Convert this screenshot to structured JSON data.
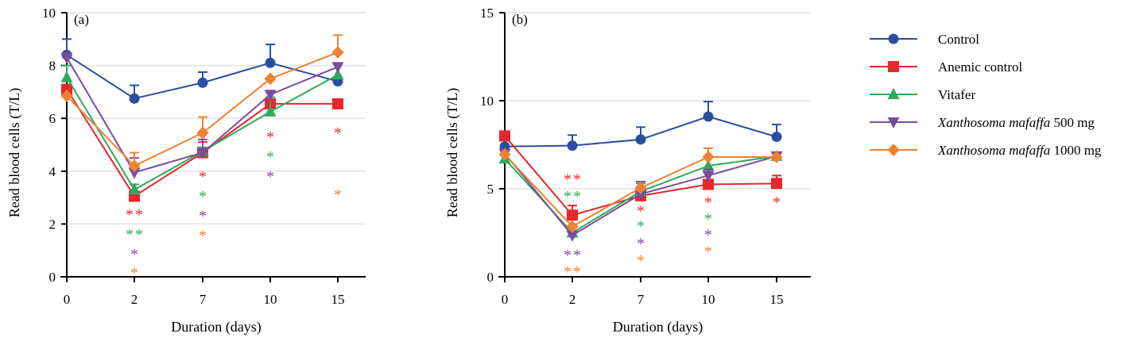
{
  "chart_data": [
    {
      "type": "line",
      "panel_label": "(a)",
      "xlabel": "Duration (days)",
      "ylabel": "Read blood cells (T/L)",
      "categories": [
        "0",
        "2",
        "7",
        "10",
        "15"
      ],
      "ylim": [
        0,
        10
      ],
      "yticks": [
        0,
        2,
        4,
        6,
        8,
        10
      ],
      "grid": true,
      "series": [
        {
          "name": "Control",
          "color": "#2a4f9e",
          "marker": "circle",
          "values": [
            8.4,
            6.75,
            7.35,
            8.1,
            7.4
          ],
          "err_top": [
            9.0,
            7.25,
            7.75,
            8.8,
            null
          ]
        },
        {
          "name": "Anemic control",
          "color": "#e8262c",
          "marker": "square",
          "values": [
            7.1,
            3.05,
            4.7,
            6.55,
            6.55
          ],
          "err_top": [
            null,
            3.5,
            5.1,
            null,
            null
          ]
        },
        {
          "name": "Vitafer",
          "color": "#2eab5c",
          "marker": "triangle-up",
          "values": [
            7.55,
            3.3,
            4.75,
            6.25,
            7.65
          ],
          "err_top": [
            8.0,
            3.5,
            4.9,
            6.8,
            8.05
          ]
        },
        {
          "name": "Xanthosoma mafaffa 500 mg",
          "color": "#7b4b9e",
          "marker": "triangle-down",
          "values": [
            8.3,
            3.95,
            4.7,
            6.9,
            7.95
          ],
          "err_top": [
            null,
            4.5,
            5.2,
            null,
            null
          ]
        },
        {
          "name": "Xanthosoma mafaffa 1000 mg",
          "color": "#ee8230",
          "marker": "diamond",
          "values": [
            6.85,
            4.2,
            5.45,
            7.5,
            8.5
          ],
          "err_top": [
            null,
            4.7,
            6.05,
            null,
            9.15
          ]
        }
      ],
      "significance": [
        {
          "x": "2",
          "series": "Anemic control",
          "text": "**",
          "y": 2.4
        },
        {
          "x": "2",
          "series": "Vitafer",
          "text": "**",
          "y": 1.65
        },
        {
          "x": "2",
          "series": "Xanthosoma mafaffa 500 mg",
          "text": "*",
          "y": 0.9
        },
        {
          "x": "2",
          "series": "Xanthosoma mafaffa 1000 mg",
          "text": "*",
          "y": 0.2
        },
        {
          "x": "7",
          "series": "Anemic control",
          "text": "*",
          "y": 3.85
        },
        {
          "x": "7",
          "series": "Vitafer",
          "text": "*",
          "y": 3.1
        },
        {
          "x": "7",
          "series": "Xanthosoma mafaffa 500 mg",
          "text": "*",
          "y": 2.35
        },
        {
          "x": "7",
          "series": "Xanthosoma mafaffa 1000 mg",
          "text": "*",
          "y": 1.6
        },
        {
          "x": "10",
          "series": "Anemic control",
          "text": "*",
          "y": 5.35
        },
        {
          "x": "10",
          "series": "Vitafer",
          "text": "*",
          "y": 4.6
        },
        {
          "x": "10",
          "series": "Xanthosoma mafaffa 500 mg",
          "text": "*",
          "y": 3.85
        },
        {
          "x": "15",
          "series": "Anemic control",
          "text": "*",
          "y": 5.5
        },
        {
          "x": "15",
          "series": "Xanthosoma mafaffa 1000 mg",
          "text": "*",
          "y": 3.15
        }
      ]
    },
    {
      "type": "line",
      "panel_label": "(b)",
      "xlabel": "Duration (days)",
      "ylabel": "Read blood cells (T/L)",
      "categories": [
        "0",
        "2",
        "7",
        "10",
        "15"
      ],
      "ylim": [
        0,
        15
      ],
      "yticks": [
        0,
        5,
        10,
        15
      ],
      "grid": true,
      "series": [
        {
          "name": "Control",
          "color": "#2a4f9e",
          "marker": "circle",
          "values": [
            7.4,
            7.45,
            7.8,
            9.1,
            7.95
          ],
          "err_top": [
            7.9,
            8.05,
            8.5,
            9.95,
            8.65
          ]
        },
        {
          "name": "Anemic control",
          "color": "#e8262c",
          "marker": "square",
          "values": [
            8.0,
            3.5,
            4.6,
            5.25,
            5.3
          ],
          "err_top": [
            null,
            4.05,
            null,
            null,
            5.75
          ]
        },
        {
          "name": "Vitafer",
          "color": "#2eab5c",
          "marker": "triangle-up",
          "values": [
            6.7,
            2.5,
            4.85,
            6.3,
            6.85
          ],
          "err_top": [
            null,
            null,
            5.3,
            null,
            null
          ]
        },
        {
          "name": "Xanthosoma mafaffa 500 mg",
          "color": "#7b4b9e",
          "marker": "triangle-down",
          "values": [
            7.0,
            2.35,
            4.7,
            5.75,
            6.85
          ],
          "err_top": [
            null,
            2.9,
            5.4,
            6.1,
            null
          ]
        },
        {
          "name": "Xanthosoma mafaffa 1000 mg",
          "color": "#ee8230",
          "marker": "diamond",
          "values": [
            6.95,
            2.85,
            5.05,
            6.8,
            6.8
          ],
          "err_top": [
            null,
            null,
            null,
            7.3,
            null
          ]
        }
      ],
      "significance": [
        {
          "x": "2",
          "series": "Anemic control",
          "text": "**",
          "y": 5.6
        },
        {
          "x": "2",
          "series": "Vitafer",
          "text": "**",
          "y": 4.65
        },
        {
          "x": "2",
          "series": "Xanthosoma mafaffa 500 mg",
          "text": "**",
          "y": 1.3
        },
        {
          "x": "2",
          "series": "Xanthosoma mafaffa 1000 mg",
          "text": "**",
          "y": 0.35
        },
        {
          "x": "7",
          "series": "Anemic control",
          "text": "*",
          "y": 3.8
        },
        {
          "x": "7",
          "series": "Vitafer",
          "text": "*",
          "y": 2.95
        },
        {
          "x": "7",
          "series": "Xanthosoma mafaffa 500 mg",
          "text": "*",
          "y": 1.95
        },
        {
          "x": "7",
          "series": "Xanthosoma mafaffa 1000 mg",
          "text": "*",
          "y": 1.0
        },
        {
          "x": "10",
          "series": "Anemic control",
          "text": "*",
          "y": 4.3
        },
        {
          "x": "10",
          "series": "Vitafer",
          "text": "*",
          "y": 3.35
        },
        {
          "x": "10",
          "series": "Xanthosoma mafaffa 500 mg",
          "text": "*",
          "y": 2.45
        },
        {
          "x": "10",
          "series": "Xanthosoma mafaffa 1000 mg",
          "text": "*",
          "y": 1.5
        },
        {
          "x": "15",
          "series": "Anemic control",
          "text": "*",
          "y": 4.3
        }
      ]
    }
  ],
  "legend": {
    "placement": "right",
    "items": [
      {
        "label": "Control",
        "italic": "",
        "suffix": ""
      },
      {
        "label": "Anemic control",
        "italic": "",
        "suffix": ""
      },
      {
        "label": "Vitafer",
        "italic": "",
        "suffix": ""
      },
      {
        "label": "",
        "italic": "Xanthosoma mafaffa",
        "suffix": " 500 mg"
      },
      {
        "label": "",
        "italic": "Xanthosoma mafaffa",
        "suffix": " 1000 mg"
      }
    ]
  }
}
